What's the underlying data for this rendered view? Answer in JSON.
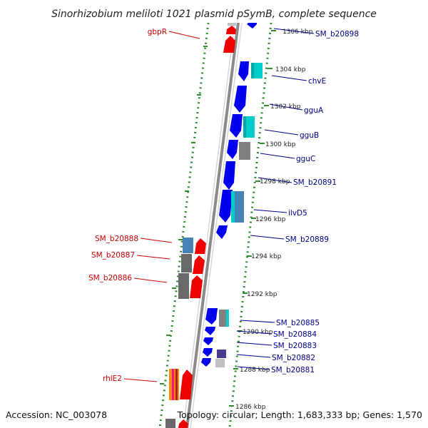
{
  "title": "Sinorhizobium meliloti 1021 plasmid pSymB, complete sequence",
  "footer": {
    "accession": "Accession: NC_003078",
    "summary": "Topology: circular; Length: 1,683,333 bp; Genes: 1,570"
  },
  "colors": {
    "forward_gene": "#ee0000",
    "reverse_gene": "#0000ee",
    "backbone": "#8a8a8a",
    "dots": "#2e8b2e",
    "forward_label": "#cc0000",
    "reverse_label": "#00008b"
  },
  "ticks": [
    {
      "label": "1306 kbp"
    },
    {
      "label": "1304 kbp"
    },
    {
      "label": "1302 kbp"
    },
    {
      "label": "1300 kbp"
    },
    {
      "label": "1298 kbp"
    },
    {
      "label": "1296 kbp"
    },
    {
      "label": "1294 kbp"
    },
    {
      "label": "1292 kbp"
    },
    {
      "label": "1290 kbp"
    },
    {
      "label": "1288 kbp"
    },
    {
      "label": "1286 kbp"
    }
  ],
  "forward_labels": [
    {
      "name": "gbpR"
    },
    {
      "name": "SM_b20888"
    },
    {
      "name": "SM_b20887"
    },
    {
      "name": "SM_b20886"
    },
    {
      "name": "rhlE2"
    }
  ],
  "reverse_labels": [
    {
      "name": "SM_b20898"
    },
    {
      "name": "chvE"
    },
    {
      "name": "gguA"
    },
    {
      "name": "gguB"
    },
    {
      "name": "gguC"
    },
    {
      "name": "SM_b20891"
    },
    {
      "name": "ilvD5"
    },
    {
      "name": "SM_b20889"
    },
    {
      "name": "SM_b20885"
    },
    {
      "name": "SM_b20884"
    },
    {
      "name": "SM_b20883"
    },
    {
      "name": "SM_b20882"
    },
    {
      "name": "SM_b20881"
    }
  ]
}
